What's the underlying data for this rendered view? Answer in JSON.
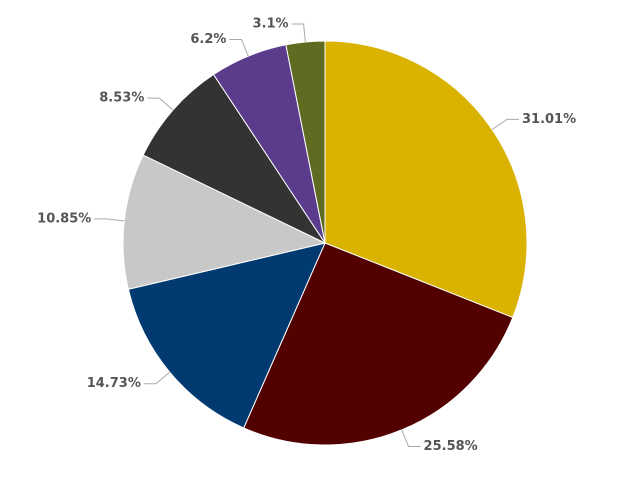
{
  "chart_data": {
    "type": "pie",
    "values": [
      31.01,
      25.58,
      14.73,
      10.85,
      8.53,
      6.2,
      3.1
    ],
    "value_labels": [
      "31.01%",
      "25.58%",
      "14.73%",
      "10.85%",
      "8.53%",
      "6.2%",
      "3.1%"
    ],
    "colors": [
      "#d9b300",
      "#520000",
      "#003a70",
      "#c8c8c8",
      "#333333",
      "#5b3c8c",
      "#5e6b21"
    ]
  }
}
